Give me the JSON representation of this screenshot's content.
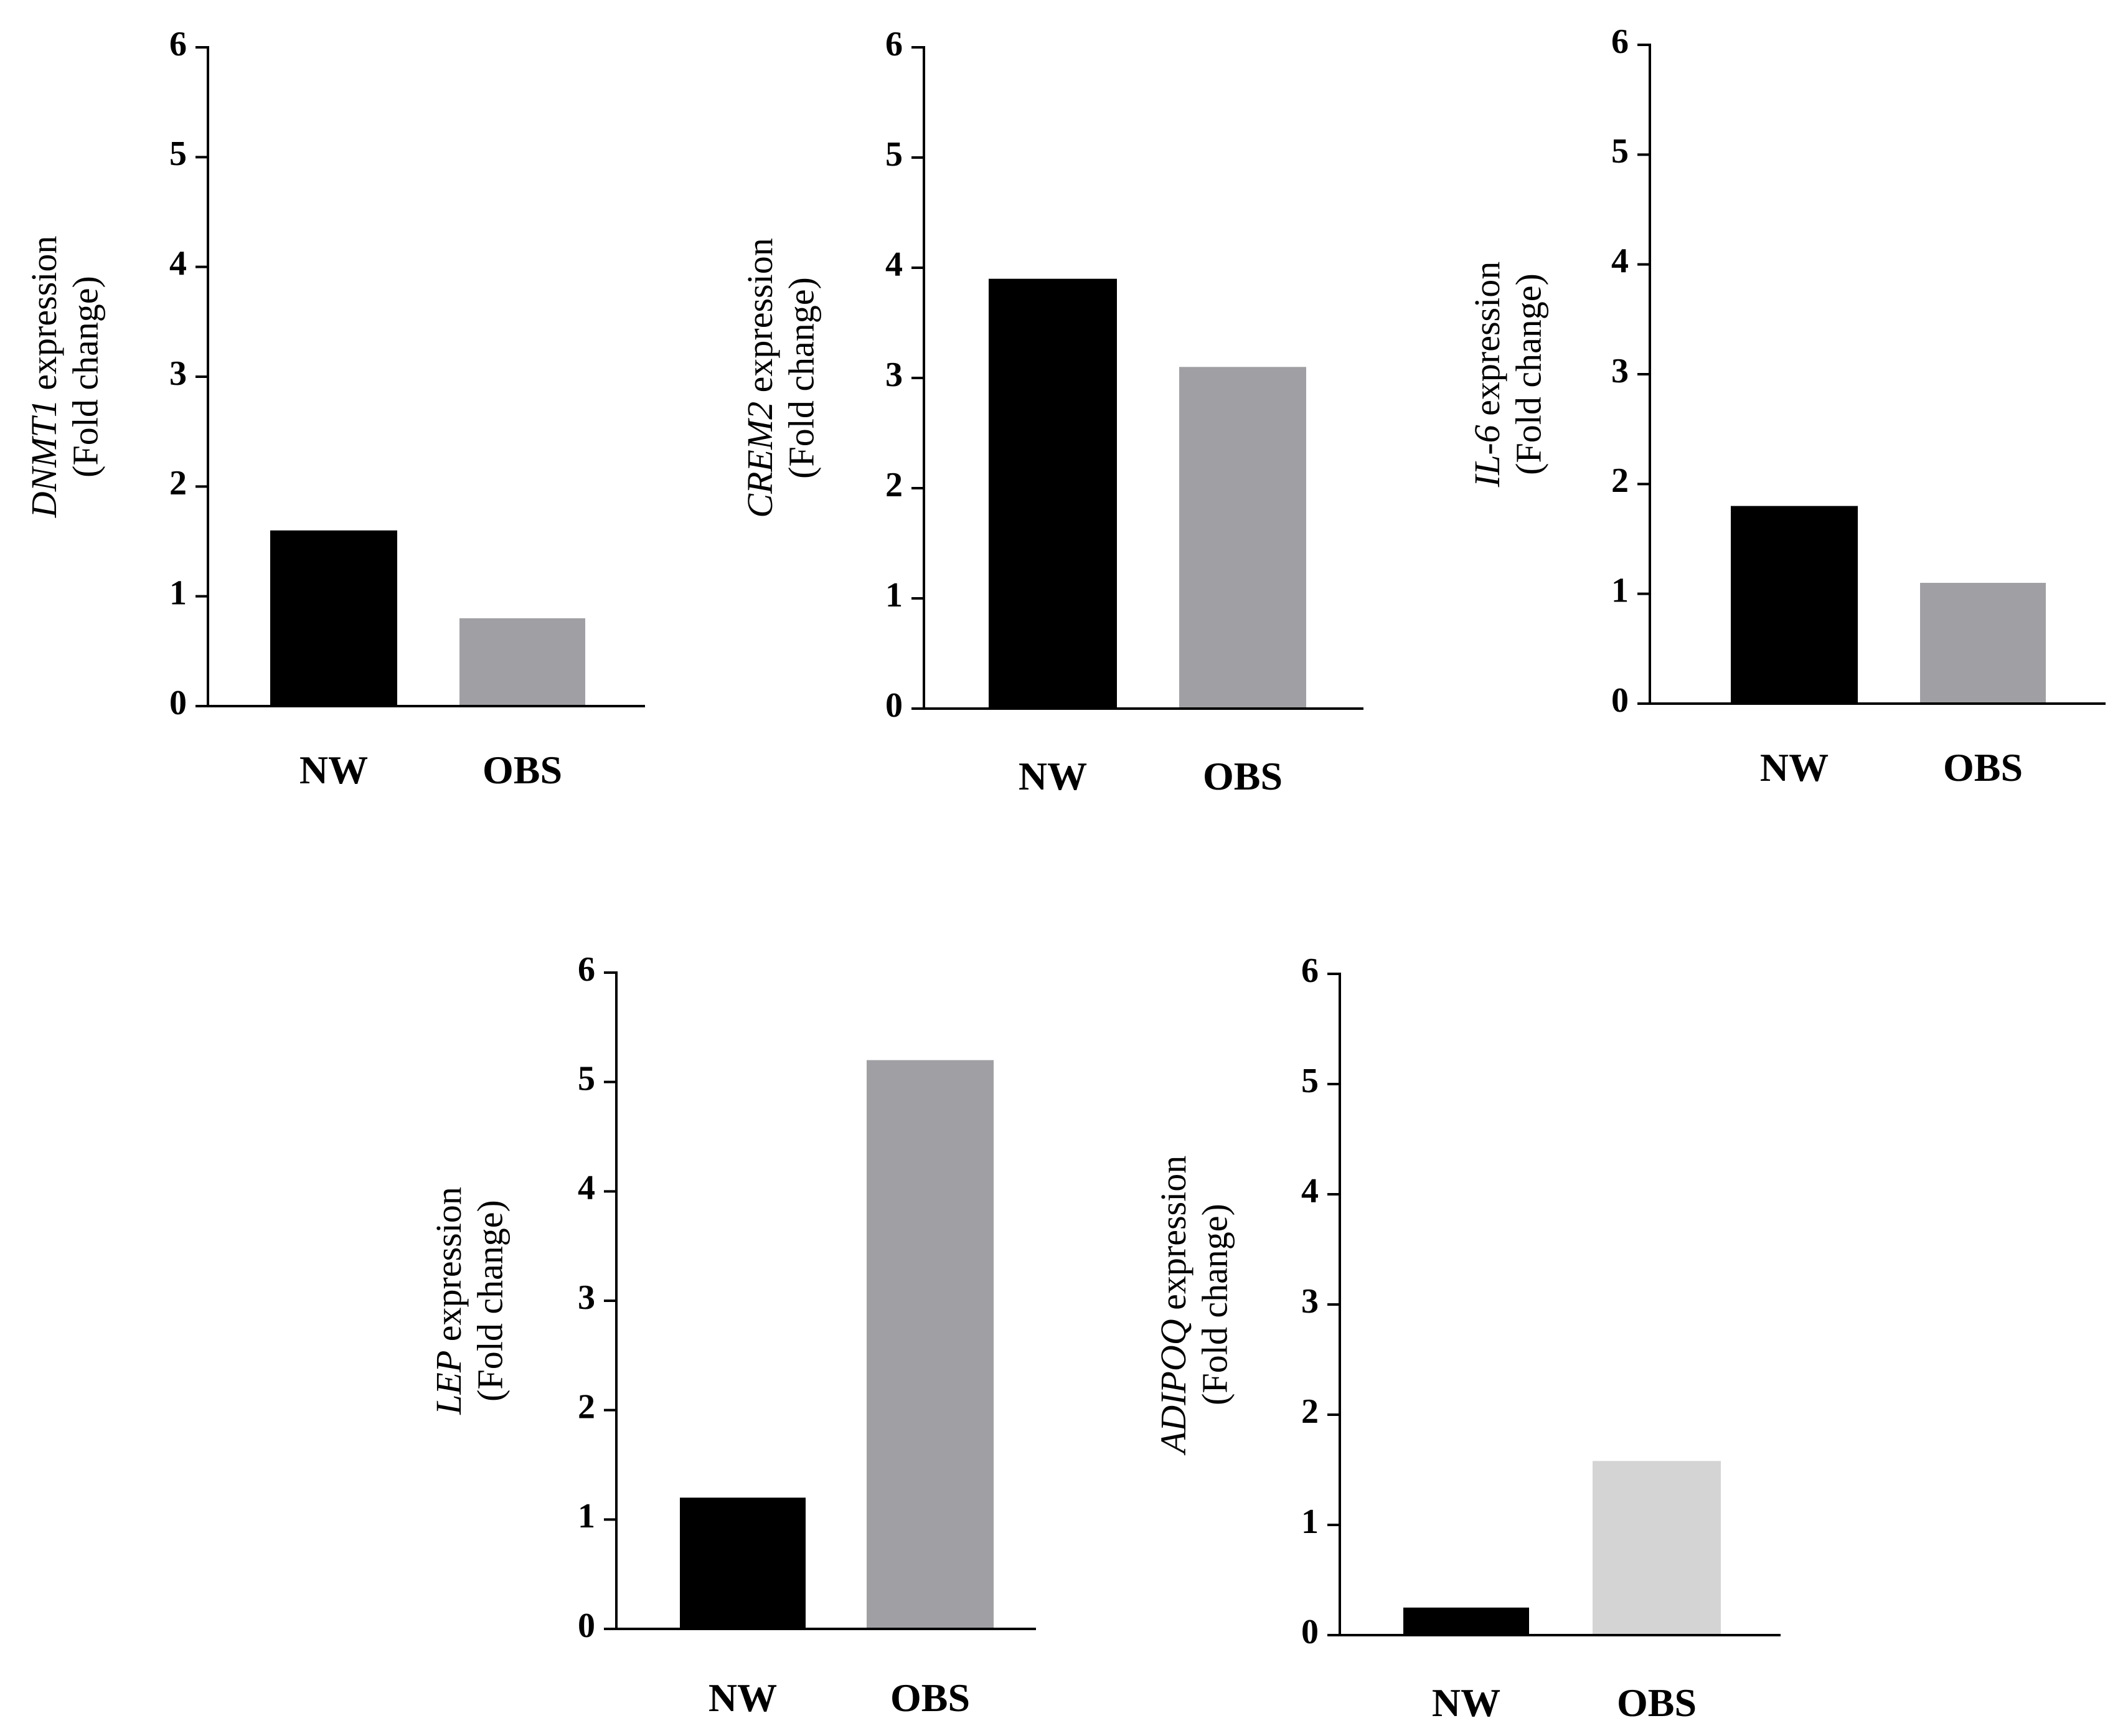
{
  "chart_data": [
    {
      "type": "bar",
      "gene": "DNMT1",
      "ylabel_suffix": " expression",
      "ylabel_line2": "(Fold change)",
      "categories": [
        "NW",
        "OBS"
      ],
      "values": [
        1.6,
        0.8
      ],
      "colors": [
        "#000000",
        "#a0a0a4"
      ],
      "ylim": [
        0,
        6
      ],
      "yticks": [
        0,
        1,
        2,
        3,
        4,
        5,
        6
      ]
    },
    {
      "type": "bar",
      "gene": "CREM2",
      "ylabel_suffix": " expression",
      "ylabel_line2": "(Fold change)",
      "categories": [
        "NW",
        "OBS"
      ],
      "values": [
        3.9,
        3.1
      ],
      "colors": [
        "#000000",
        "#a0a0a4"
      ],
      "ylim": [
        0,
        6
      ],
      "yticks": [
        0,
        1,
        2,
        3,
        4,
        5,
        6
      ]
    },
    {
      "type": "bar",
      "gene": "IL-6",
      "ylabel_suffix": " expression",
      "ylabel_line2": "(Fold change)",
      "categories": [
        "NW",
        "OBS"
      ],
      "values": [
        1.8,
        1.1
      ],
      "colors": [
        "#000000",
        "#a0a0a4"
      ],
      "ylim": [
        0,
        6
      ],
      "yticks": [
        0,
        1,
        2,
        3,
        4,
        5,
        6
      ]
    },
    {
      "type": "bar",
      "gene": "LEP",
      "ylabel_suffix": " expression",
      "ylabel_line2": "(Fold change)",
      "categories": [
        "NW",
        "OBS"
      ],
      "values": [
        1.2,
        5.2
      ],
      "colors": [
        "#000000",
        "#a0a0a4"
      ],
      "ylim": [
        0,
        6
      ],
      "yticks": [
        0,
        1,
        2,
        3,
        4,
        5,
        6
      ]
    },
    {
      "type": "bar",
      "gene": "ADIPOQ",
      "ylabel_suffix": " expression",
      "ylabel_line2": "(Fold change)",
      "categories": [
        "NW",
        "OBS"
      ],
      "values": [
        0.25,
        1.58
      ],
      "colors": [
        "#000000",
        "#d4d4d4"
      ],
      "ylim": [
        0,
        6
      ],
      "yticks": [
        0,
        1,
        2,
        3,
        4,
        5,
        6
      ]
    }
  ]
}
